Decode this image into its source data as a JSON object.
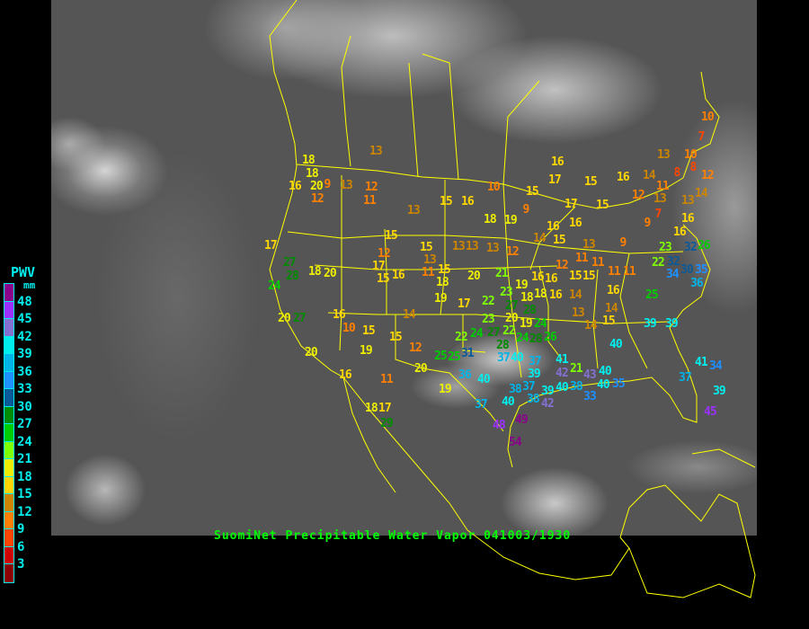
{
  "title": "SuomiNet Precipitable Water Vapor 041003/1930",
  "legend": {
    "title": "PWV",
    "unit": "mm",
    "ticks": [
      "48",
      "45",
      "42",
      "39",
      "36",
      "33",
      "30",
      "27",
      "24",
      "21",
      "18",
      "15",
      "12",
      "9",
      "6",
      "3"
    ],
    "colors": [
      "#8b008b",
      "#9b30ff",
      "#8470d0",
      "#00eeee",
      "#00b4e8",
      "#1e90ff",
      "#0a5a9a",
      "#008b00",
      "#00cd00",
      "#7fff00",
      "#eeee00",
      "#ffd700",
      "#cd8500",
      "#ff8000",
      "#ff4500",
      "#d00000",
      "#8b0000"
    ]
  },
  "colors": {
    "coastline": "#ffff00",
    "title": "#00ff00",
    "legend_text": "#00eeee"
  },
  "stations": [
    18,
    18,
    20,
    16,
    9,
    12,
    13,
    12,
    11,
    13,
    13,
    15,
    16,
    10,
    18,
    19,
    17,
    27,
    28,
    24,
    18,
    20,
    15,
    12,
    17,
    15,
    16,
    15,
    13,
    11,
    15,
    18,
    13,
    13,
    13,
    12,
    20,
    21,
    19,
    17,
    14,
    16,
    10,
    15,
    20,
    27,
    20,
    19,
    15,
    12,
    20,
    25,
    16,
    11,
    19,
    18,
    17,
    29,
    19,
    16,
    16,
    18,
    23,
    18,
    22,
    27,
    28,
    20,
    23,
    19,
    24,
    27,
    22,
    24,
    28,
    28,
    26,
    37,
    22,
    24,
    25,
    31,
    40,
    37,
    39,
    41,
    42,
    21,
    36,
    40,
    43,
    40,
    40,
    35,
    37,
    38,
    38,
    39,
    42,
    40,
    40,
    38,
    33,
    37,
    48,
    49,
    54,
    14,
    13,
    14,
    15,
    16,
    14,
    25,
    39,
    40,
    16,
    15,
    11,
    10,
    7,
    13,
    10,
    8,
    8,
    12,
    16,
    17,
    15,
    16,
    14,
    11,
    15,
    12,
    13,
    14,
    13,
    9,
    17,
    15,
    7,
    9,
    16,
    16,
    16,
    16,
    14,
    15,
    13,
    9,
    11,
    11,
    12,
    15,
    11,
    23,
    22,
    32,
    32,
    26,
    34,
    30,
    35,
    36,
    39,
    37,
    41,
    34,
    39,
    45
  ]
}
